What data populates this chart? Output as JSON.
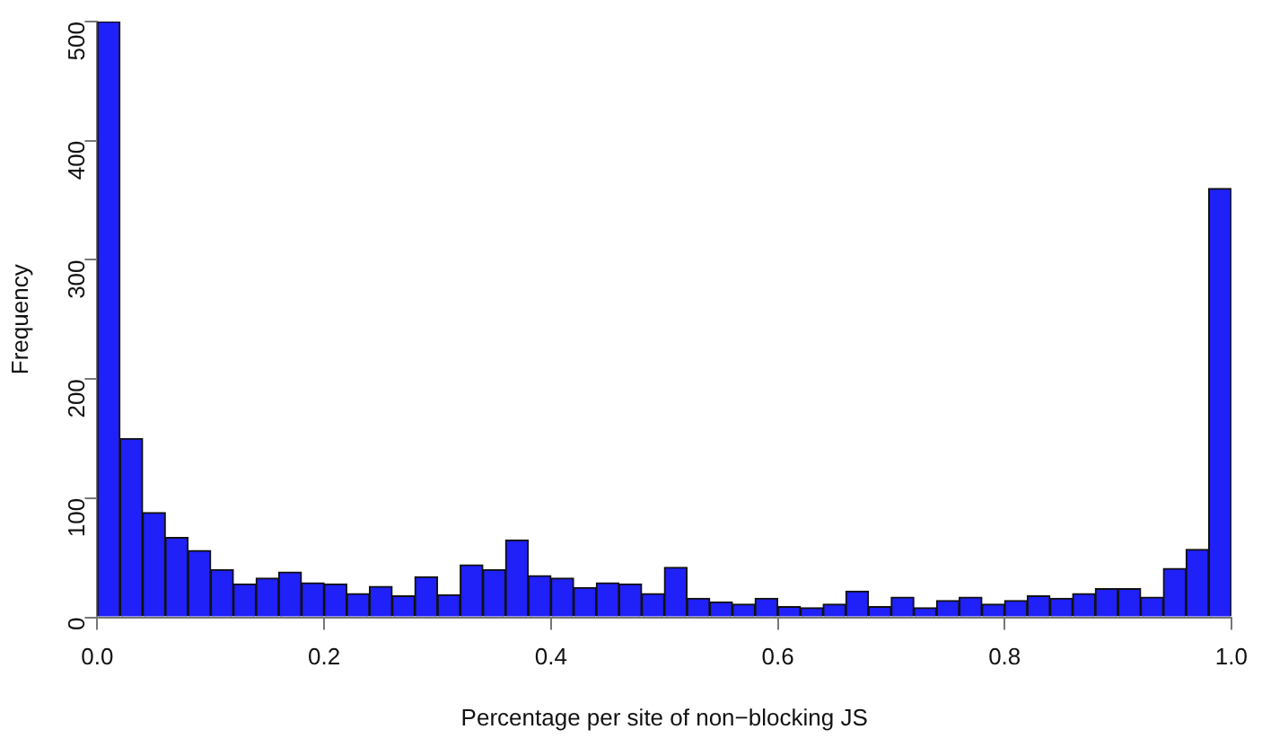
{
  "chart_data": {
    "type": "histogram",
    "xlabel": "Percentage per site of non−blocking JS",
    "ylabel": "Frequency",
    "bins": [
      0,
      0.02,
      0.04,
      0.06,
      0.08,
      0.1,
      0.12,
      0.14,
      0.16,
      0.18,
      0.2,
      0.22,
      0.24,
      0.26,
      0.28,
      0.3,
      0.32,
      0.34,
      0.36,
      0.38,
      0.4,
      0.42,
      0.44,
      0.46,
      0.48,
      0.5,
      0.52,
      0.54,
      0.56,
      0.58,
      0.6,
      0.62,
      0.64,
      0.66,
      0.68,
      0.7,
      0.72,
      0.74,
      0.76,
      0.78,
      0.8,
      0.82,
      0.84,
      0.86,
      0.88,
      0.9,
      0.92,
      0.94,
      0.96,
      0.98,
      1
    ],
    "values": [
      500,
      150,
      88,
      67,
      56,
      40,
      28,
      33,
      38,
      29,
      28,
      20,
      26,
      18,
      34,
      19,
      44,
      40,
      65,
      35,
      33,
      25,
      29,
      28,
      20,
      42,
      16,
      13,
      11,
      16,
      9,
      8,
      11,
      22,
      9,
      17,
      8,
      14,
      17,
      11,
      14,
      18,
      16,
      20,
      24,
      24,
      17,
      41,
      57,
      360
    ],
    "color": "#2020f8",
    "xlim": [
      0,
      1
    ],
    "xticks": [
      {
        "value": 0,
        "label": "0.0"
      },
      0.2,
      0.4,
      0.6,
      0.8,
      {
        "value": 1,
        "label": "1.0"
      }
    ],
    "ylim": [
      0,
      500
    ],
    "yticks": [
      0,
      100,
      200,
      300,
      400,
      500
    ],
    "grid": false
  }
}
